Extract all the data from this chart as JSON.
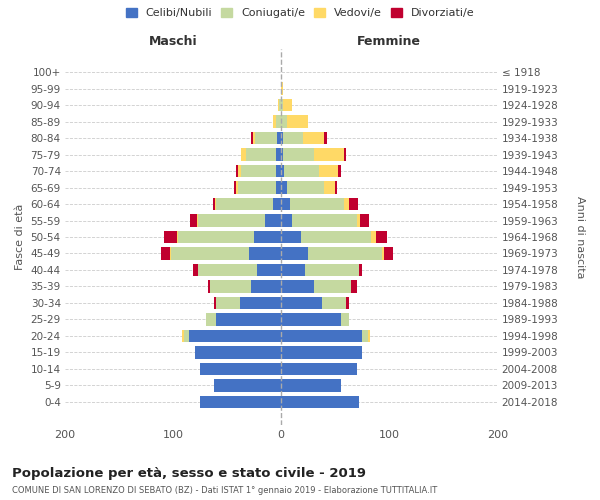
{
  "age_groups": [
    "0-4",
    "5-9",
    "10-14",
    "15-19",
    "20-24",
    "25-29",
    "30-34",
    "35-39",
    "40-44",
    "45-49",
    "50-54",
    "55-59",
    "60-64",
    "65-69",
    "70-74",
    "75-79",
    "80-84",
    "85-89",
    "90-94",
    "95-99",
    "100+"
  ],
  "birth_years": [
    "2014-2018",
    "2009-2013",
    "2004-2008",
    "1999-2003",
    "1994-1998",
    "1989-1993",
    "1984-1988",
    "1979-1983",
    "1974-1978",
    "1969-1973",
    "1964-1968",
    "1959-1963",
    "1954-1958",
    "1949-1953",
    "1944-1948",
    "1939-1943",
    "1934-1938",
    "1929-1933",
    "1924-1928",
    "1919-1923",
    "≤ 1918"
  ],
  "male": {
    "celibi": [
      75,
      62,
      75,
      80,
      85,
      60,
      38,
      28,
      22,
      30,
      25,
      15,
      8,
      5,
      5,
      5,
      4,
      0,
      0,
      0,
      0
    ],
    "coniugati": [
      0,
      0,
      0,
      0,
      5,
      10,
      22,
      38,
      55,
      72,
      70,
      62,
      52,
      35,
      32,
      28,
      20,
      5,
      2,
      0,
      0
    ],
    "vedovi": [
      0,
      0,
      0,
      0,
      2,
      0,
      0,
      0,
      0,
      1,
      1,
      1,
      1,
      2,
      3,
      4,
      2,
      3,
      1,
      0,
      0
    ],
    "divorziati": [
      0,
      0,
      0,
      0,
      0,
      0,
      2,
      2,
      5,
      8,
      12,
      6,
      2,
      2,
      2,
      0,
      2,
      0,
      0,
      0,
      0
    ]
  },
  "female": {
    "nubili": [
      72,
      55,
      70,
      75,
      75,
      55,
      38,
      30,
      22,
      25,
      18,
      10,
      8,
      5,
      3,
      2,
      2,
      0,
      0,
      0,
      0
    ],
    "coniugate": [
      0,
      0,
      0,
      0,
      5,
      8,
      22,
      35,
      50,
      68,
      65,
      60,
      50,
      35,
      32,
      28,
      18,
      5,
      2,
      0,
      0
    ],
    "vedove": [
      0,
      0,
      0,
      0,
      2,
      0,
      0,
      0,
      0,
      2,
      5,
      3,
      5,
      10,
      18,
      28,
      20,
      20,
      8,
      2,
      0
    ],
    "divorziate": [
      0,
      0,
      0,
      0,
      0,
      0,
      3,
      5,
      3,
      8,
      10,
      8,
      8,
      2,
      2,
      2,
      2,
      0,
      0,
      0,
      0
    ]
  },
  "colors": {
    "celibi": "#4472C4",
    "coniugati": "#C5D9A0",
    "vedovi": "#FFD966",
    "divorziati": "#C0002F"
  },
  "xlim": 200,
  "title": "Popolazione per età, sesso e stato civile - 2019",
  "subtitle": "COMUNE DI SAN LORENZO DI SEBATO (BZ) - Dati ISTAT 1° gennaio 2019 - Elaborazione TUTTITALIA.IT",
  "legend_labels": [
    "Celibi/Nubili",
    "Coniugati/e",
    "Vedovi/e",
    "Divorziati/e"
  ],
  "ylabel_left": "Fasce di età",
  "ylabel_right": "Anni di nascita",
  "xlabel_male": "Maschi",
  "xlabel_female": "Femmine"
}
